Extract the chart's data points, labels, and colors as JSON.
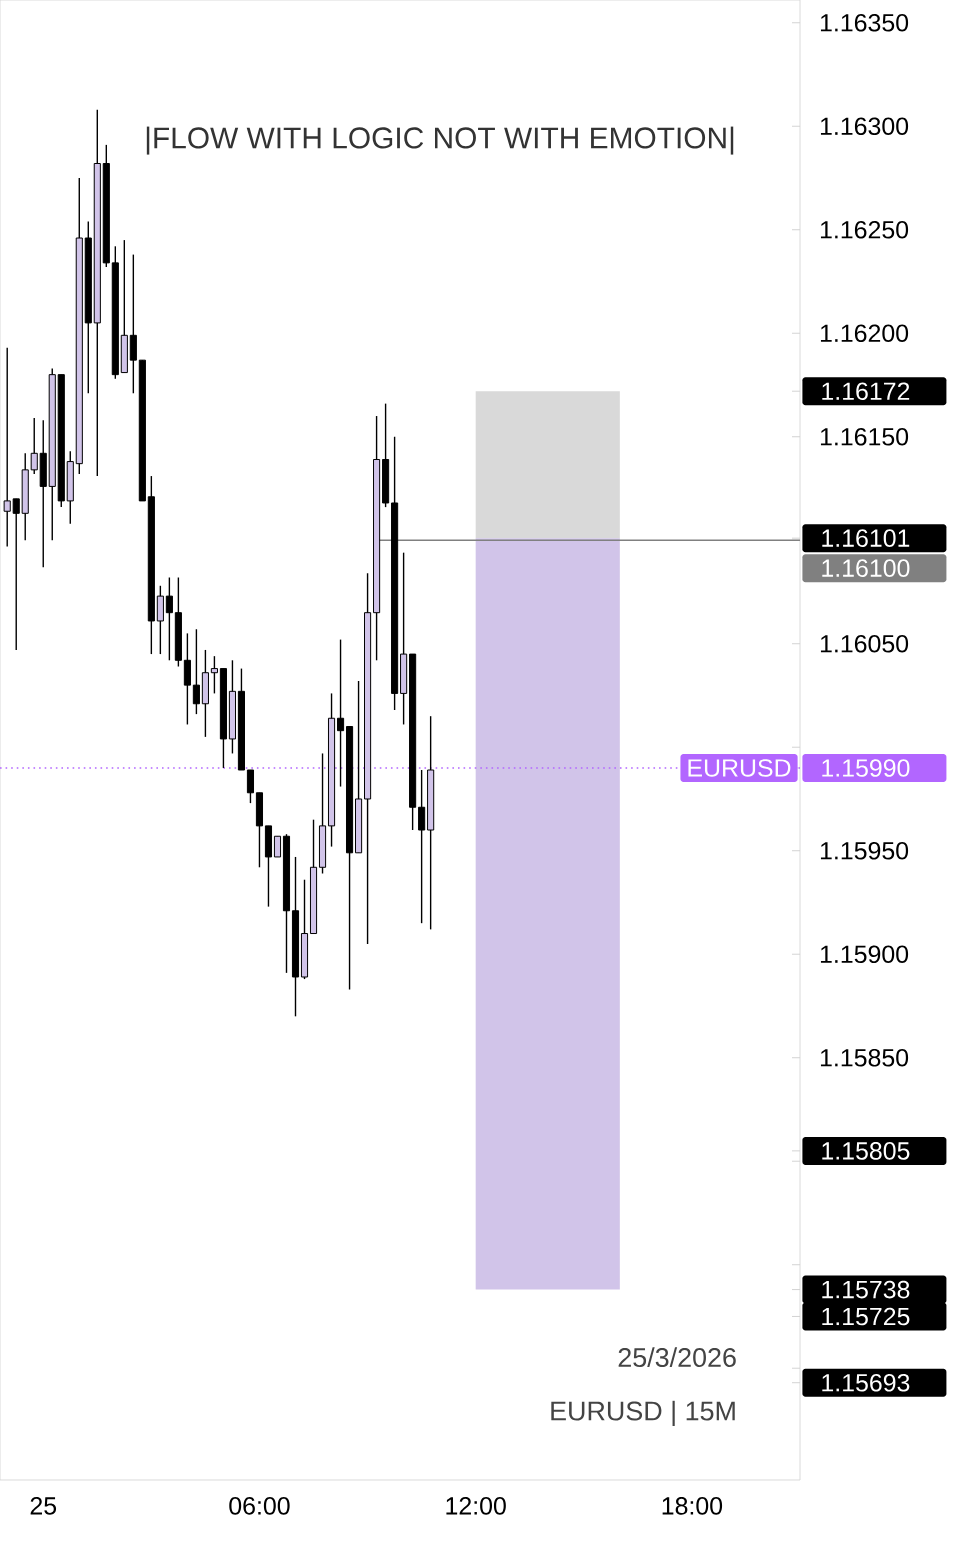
{
  "chart_data": {
    "type": "candlestick",
    "subtitle": "|FLOW WITH LOGIC NOT WITH EMOTION|",
    "x": [
      "2026-03-24T23:00",
      "2026-03-24T23:15",
      "2026-03-24T23:30",
      "2026-03-24T23:45",
      "2026-03-25T00:00",
      "2026-03-25T00:15",
      "2026-03-25T00:30",
      "2026-03-25T00:45",
      "2026-03-25T01:00",
      "2026-03-25T01:15",
      "2026-03-25T01:30",
      "2026-03-25T01:45",
      "2026-03-25T02:00",
      "2026-03-25T02:15",
      "2026-03-25T02:30",
      "2026-03-25T02:45",
      "2026-03-25T03:00",
      "2026-03-25T03:15",
      "2026-03-25T03:30",
      "2026-03-25T03:45",
      "2026-03-25T04:00",
      "2026-03-25T04:15",
      "2026-03-25T04:30",
      "2026-03-25T04:45",
      "2026-03-25T05:00",
      "2026-03-25T05:15",
      "2026-03-25T05:30",
      "2026-03-25T05:45",
      "2026-03-25T06:00",
      "2026-03-25T06:15",
      "2026-03-25T06:30",
      "2026-03-25T06:45",
      "2026-03-25T07:00",
      "2026-03-25T07:15",
      "2026-03-25T07:30",
      "2026-03-25T07:45",
      "2026-03-25T08:00",
      "2026-03-25T08:15",
      "2026-03-25T08:30",
      "2026-03-25T08:45",
      "2026-03-25T09:00",
      "2026-03-25T09:15",
      "2026-03-25T09:30",
      "2026-03-25T09:45",
      "2026-03-25T10:00",
      "2026-03-25T10:15",
      "2026-03-25T10:30",
      "2026-03-25T10:45"
    ],
    "ohlc": [
      [
        1.16114,
        1.16193,
        1.16097,
        1.16119
      ],
      [
        1.1612,
        1.1612,
        1.16047,
        1.16113
      ],
      [
        1.16113,
        1.16142,
        1.161,
        1.16134
      ],
      [
        1.16134,
        1.16159,
        1.16132,
        1.16142
      ],
      [
        1.16142,
        1.16158,
        1.16087,
        1.16126
      ],
      [
        1.16126,
        1.16183,
        1.161,
        1.1618
      ],
      [
        1.1618,
        1.1618,
        1.16116,
        1.16119
      ],
      [
        1.16119,
        1.16143,
        1.16108,
        1.16138
      ],
      [
        1.16137,
        1.16275,
        1.16132,
        1.16246
      ],
      [
        1.16246,
        1.16254,
        1.16171,
        1.16205
      ],
      [
        1.16205,
        1.16308,
        1.16131,
        1.16282
      ],
      [
        1.16282,
        1.16291,
        1.16232,
        1.16234
      ],
      [
        1.16234,
        1.16242,
        1.16178,
        1.1618
      ],
      [
        1.16181,
        1.16245,
        1.16181,
        1.16199
      ],
      [
        1.16199,
        1.16238,
        1.16171,
        1.16187
      ],
      [
        1.16187,
        1.16187,
        1.16119,
        1.16119
      ],
      [
        1.16121,
        1.16131,
        1.16045,
        1.16061
      ],
      [
        1.16061,
        1.16078,
        1.16045,
        1.16073
      ],
      [
        1.16073,
        1.16082,
        1.16042,
        1.16065
      ],
      [
        1.16065,
        1.16082,
        1.16039,
        1.16042
      ],
      [
        1.16042,
        1.16055,
        1.16011,
        1.1603
      ],
      [
        1.1603,
        1.16057,
        1.16016,
        1.16021
      ],
      [
        1.16021,
        1.16047,
        1.16005,
        1.16036
      ],
      [
        1.16036,
        1.16044,
        1.16026,
        1.16038
      ],
      [
        1.16038,
        1.16038,
        1.1599,
        1.16004
      ],
      [
        1.16004,
        1.16042,
        1.15997,
        1.16027
      ],
      [
        1.16027,
        1.16038,
        1.15989,
        1.15989
      ],
      [
        1.15989,
        1.15989,
        1.15973,
        1.15978
      ],
      [
        1.15978,
        1.15978,
        1.15942,
        1.15962
      ],
      [
        1.15962,
        1.15962,
        1.15923,
        1.15947
      ],
      [
        1.15947,
        1.15957,
        1.15947,
        1.15957
      ],
      [
        1.15957,
        1.15958,
        1.15891,
        1.15921
      ],
      [
        1.15921,
        1.15947,
        1.1587,
        1.15889
      ],
      [
        1.15889,
        1.15936,
        1.15888,
        1.1591
      ],
      [
        1.1591,
        1.15965,
        1.1591,
        1.15942
      ],
      [
        1.15942,
        1.15997,
        1.15939,
        1.15962
      ],
      [
        1.15962,
        1.16026,
        1.15952,
        1.16014
      ],
      [
        1.16014,
        1.16052,
        1.15981,
        1.16008
      ],
      [
        1.1601,
        1.1601,
        1.15883,
        1.15949
      ],
      [
        1.15949,
        1.16032,
        1.15949,
        1.15975
      ],
      [
        1.15975,
        1.16084,
        1.15905,
        1.16065
      ],
      [
        1.16065,
        1.1616,
        1.16042,
        1.16139
      ],
      [
        1.16139,
        1.16166,
        1.16116,
        1.16118
      ],
      [
        1.16118,
        1.1615,
        1.16018,
        1.16026
      ],
      [
        1.16026,
        1.16094,
        1.16011,
        1.16045
      ],
      [
        1.16045,
        1.16045,
        1.1596,
        1.15971
      ],
      [
        1.15971,
        1.15989,
        1.15915,
        1.1596
      ],
      [
        1.1596,
        1.16015,
        1.15912,
        1.15989
      ]
    ],
    "xlim": [
      "2026-03-24T22:48",
      "2026-03-25T21:00"
    ],
    "ylim": [
      1.15646,
      1.16361
    ],
    "xticks": [
      {
        "value": "2026-03-25T00:00",
        "label": "25"
      },
      {
        "value": "2026-03-25T06:00",
        "label": "06:00"
      },
      {
        "value": "2026-03-25T12:00",
        "label": "12:00"
      },
      {
        "value": "2026-03-25T18:00",
        "label": "18:00"
      }
    ],
    "yticks": [
      {
        "value": 1.1635,
        "label": "1.16350"
      },
      {
        "value": 1.163,
        "label": "1.16300"
      },
      {
        "value": 1.1625,
        "label": "1.16250"
      },
      {
        "value": 1.162,
        "label": "1.16200"
      },
      {
        "value": 1.16172,
        "label": "1.16172"
      },
      {
        "value": 1.1615,
        "label": "1.16150"
      },
      {
        "value": 1.16101,
        "label": "1.16101"
      },
      {
        "value": 1.161,
        "label": null
      },
      {
        "value": 1.1605,
        "label": "1.16050"
      },
      {
        "value": 1.16,
        "label": null
      },
      {
        "value": 1.1599,
        "label": "1.15990"
      },
      {
        "value": 1.1595,
        "label": "1.15950"
      },
      {
        "value": 1.159,
        "label": "1.15900"
      },
      {
        "value": 1.1585,
        "label": "1.15850"
      },
      {
        "value": 1.15805,
        "label": "1.15805"
      },
      {
        "value": 1.158,
        "label": null
      },
      {
        "value": 1.1575,
        "label": null
      },
      {
        "value": 1.15738,
        "label": "1.15738"
      },
      {
        "value": 1.15725,
        "label": "1.15725"
      },
      {
        "value": 1.157,
        "label": null
      },
      {
        "value": 1.15693,
        "label": "1.15693"
      }
    ],
    "bands": [
      {
        "axis": "y",
        "from": 1.16101,
        "to": 1.16172,
        "color": "#d9d9d9"
      },
      {
        "axis": "y",
        "from": 1.15738,
        "to": 1.16101,
        "color": "#d1c4e9"
      }
    ],
    "ref_lines": [
      {
        "axis": "y",
        "value": 1.161,
        "label": "1.16100",
        "color": "#808080"
      },
      {
        "axis": "y",
        "value": 1.1599,
        "label": "EURUSD",
        "color": "#b266ff",
        "line_style": "dotted"
      }
    ],
    "annotations": [
      "25/3/2026",
      "EURUSD | 15M"
    ]
  }
}
